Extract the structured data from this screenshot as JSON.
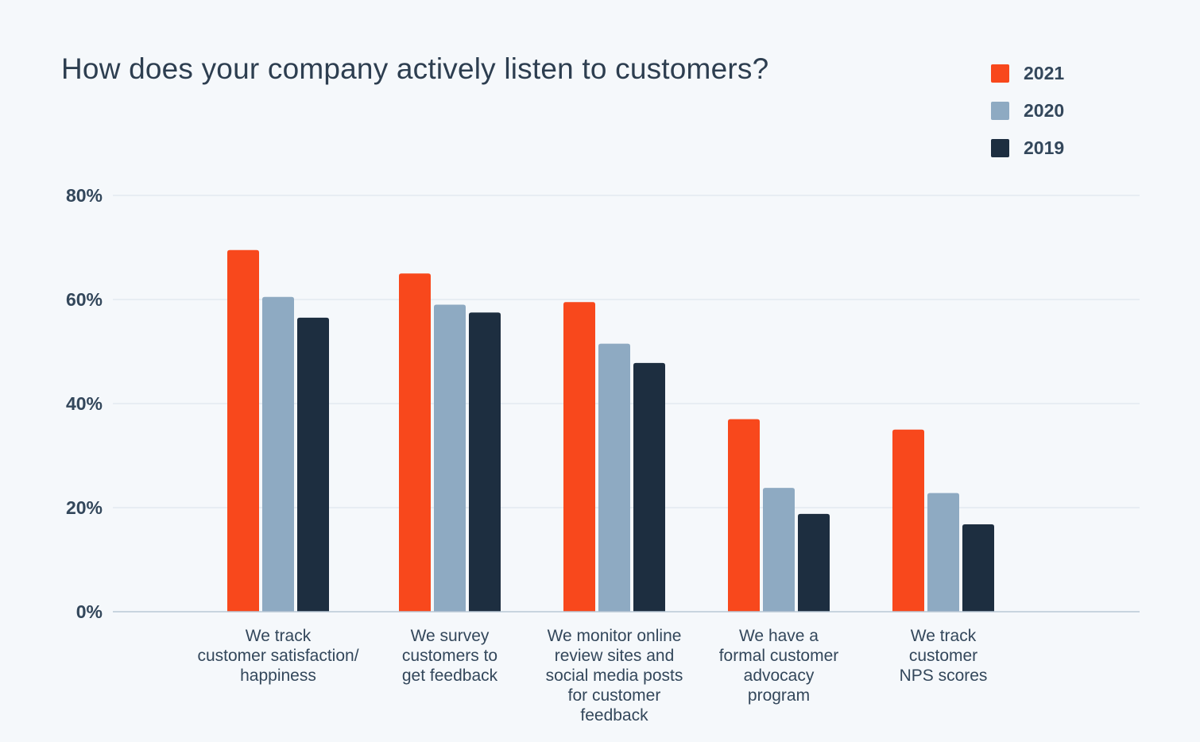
{
  "chart_data": {
    "type": "bar",
    "title": "How does your company actively listen to customers?",
    "xlabel": "",
    "ylabel": "",
    "ylim": [
      0,
      80
    ],
    "yticks": [
      0,
      20,
      40,
      60,
      80
    ],
    "ytick_labels": [
      "0%",
      "20%",
      "40%",
      "60%",
      "80%"
    ],
    "grid": true,
    "legend_position": "top-right",
    "categories": [
      [
        "We track",
        "customer satisfaction/",
        "happiness"
      ],
      [
        "We survey",
        "customers to",
        "get feedback"
      ],
      [
        "We monitor online",
        "review sites and",
        "social media posts",
        "for customer",
        "feedback"
      ],
      [
        "We have a",
        "formal customer",
        "advocacy",
        "program"
      ],
      [
        "We track",
        "customer",
        "NPS scores"
      ]
    ],
    "series": [
      {
        "name": "2021",
        "color": "#f8481c",
        "values": [
          69.5,
          65,
          59.5,
          37,
          35
        ]
      },
      {
        "name": "2020",
        "color": "#8eaac2",
        "values": [
          60.5,
          59,
          51.5,
          23.8,
          22.8
        ]
      },
      {
        "name": "2019",
        "color": "#1d2e40",
        "values": [
          56.5,
          57.5,
          47.8,
          18.8,
          16.8
        ]
      }
    ]
  }
}
